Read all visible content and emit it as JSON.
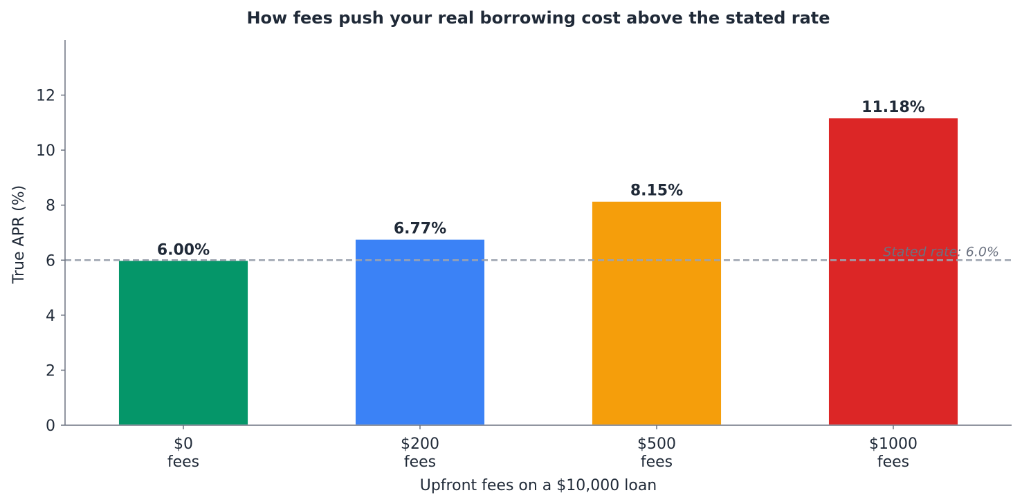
{
  "chart_data": {
    "type": "bar",
    "title": "How fees push your real borrowing cost above the stated rate",
    "xlabel": "Upfront fees on a $10,000 loan",
    "ylabel": "True APR (%)",
    "categories": [
      [
        "$0",
        "fees"
      ],
      [
        "$200",
        "fees"
      ],
      [
        "$500",
        "fees"
      ],
      [
        "$1000",
        "fees"
      ]
    ],
    "values": [
      6.0,
      6.77,
      8.15,
      11.18
    ],
    "value_labels": [
      "6.00%",
      "6.77%",
      "8.15%",
      "11.18%"
    ],
    "colors": [
      "#059669",
      "#3b82f6",
      "#f59e0b",
      "#dc2626"
    ],
    "ylim": [
      0,
      14
    ],
    "yticks": [
      0,
      2,
      4,
      6,
      8,
      10,
      12
    ],
    "reference_line": {
      "value": 6.0,
      "label": "Stated rate: 6.0%",
      "color": "#9ca3af",
      "style": "dashed"
    },
    "grid": false,
    "legend": "none"
  }
}
